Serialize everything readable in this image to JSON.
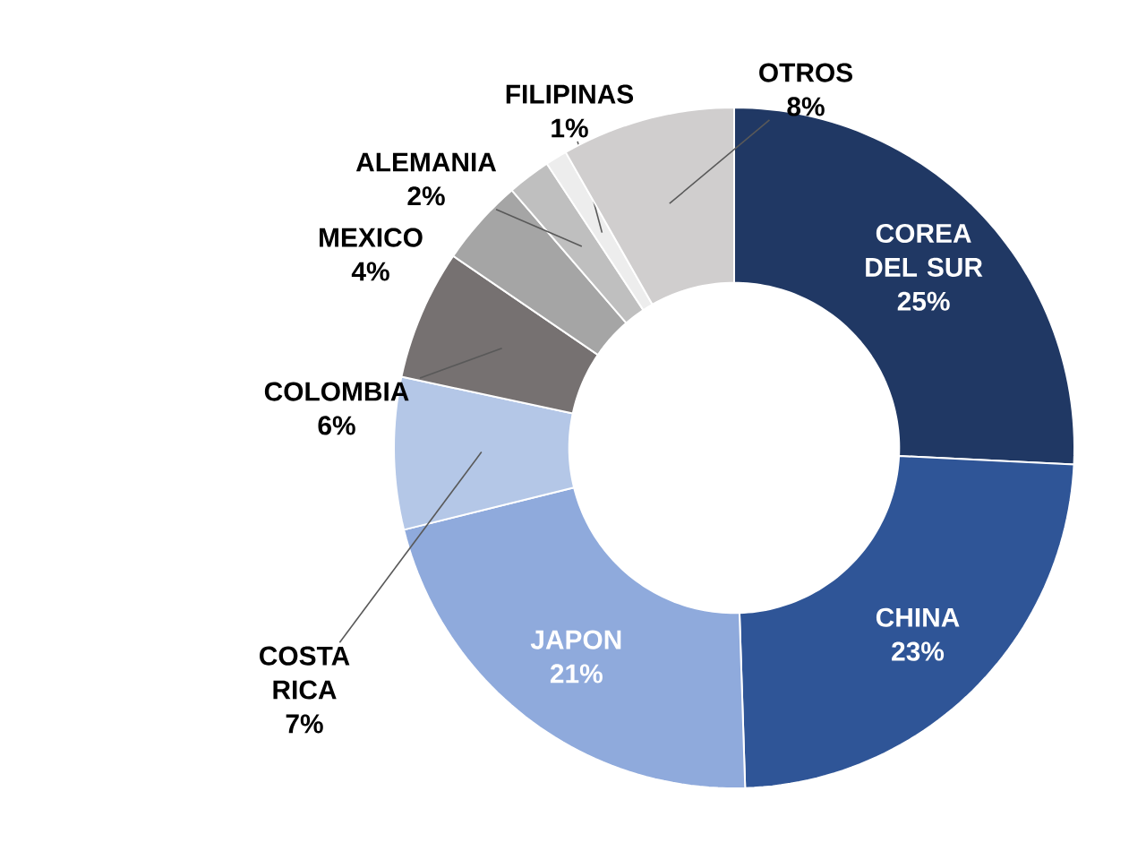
{
  "chart_data": {
    "type": "donut",
    "categories": [
      "COREA DEL SUR",
      "CHINA",
      "JAPON",
      "COSTA RICA",
      "COLOMBIA",
      "MEXICO",
      "ALEMANIA",
      "FILIPINAS",
      "OTROS"
    ],
    "values": [
      25,
      23,
      21,
      7,
      6,
      4,
      2,
      1,
      8
    ],
    "value_labels": [
      "25%",
      "23%",
      "21%",
      "7%",
      "6%",
      "4%",
      "2%",
      "1%",
      "8%"
    ],
    "colors": [
      "#203864",
      "#2f5597",
      "#8faadc",
      "#b4c7e7",
      "#767171",
      "#a5a5a5",
      "#bfbfbf",
      "#ededed",
      "#d0cece"
    ]
  }
}
